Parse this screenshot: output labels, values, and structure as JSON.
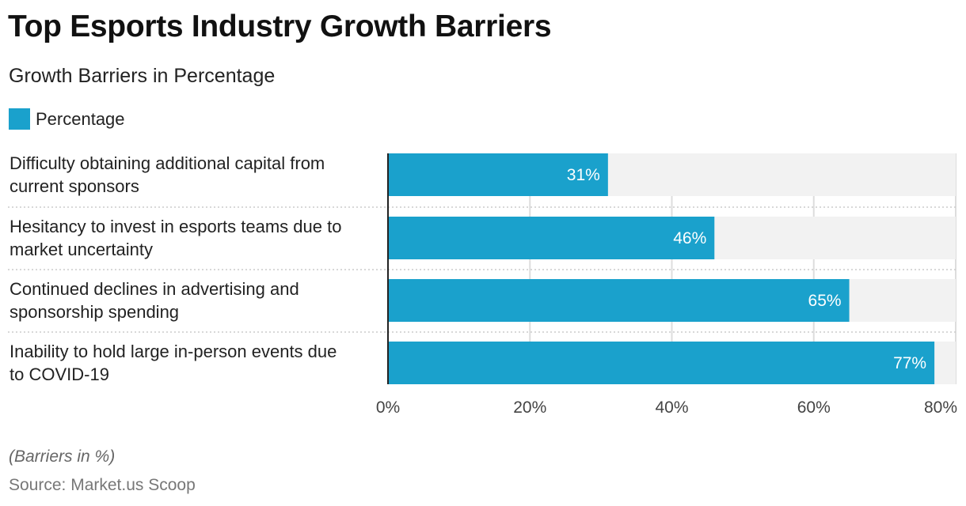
{
  "title": "Top Esports Industry Growth Barriers",
  "subtitle": "Growth Barriers in Percentage",
  "note": "(Barriers in %)",
  "source": "Source: Market.us Scoop",
  "colors": {
    "bar": "#1aa1cc",
    "track": "#f2f2f2",
    "grid": "#dddddd"
  },
  "chart_data": {
    "type": "bar",
    "orientation": "horizontal",
    "categories": [
      [
        "Difficulty obtaining additional capital from",
        "current sponsors"
      ],
      [
        "Hesitancy to invest in esports teams due to",
        "market uncertainty"
      ],
      [
        "Continued declines in advertising and",
        "sponsorship spending"
      ],
      [
        "Inability to hold large in-person events due",
        "to COVID-19"
      ]
    ],
    "series": [
      {
        "name": "Percentage",
        "values": [
          31,
          46,
          65,
          77
        ]
      }
    ],
    "data_labels": [
      "31%",
      "46%",
      "65%",
      "77%"
    ],
    "xlim": [
      0,
      80
    ],
    "xticks": [
      0,
      20,
      40,
      60,
      80
    ],
    "xtick_labels": [
      "0%",
      "20%",
      "40%",
      "60%",
      "80%"
    ],
    "grid": true,
    "legend": "top-left"
  }
}
